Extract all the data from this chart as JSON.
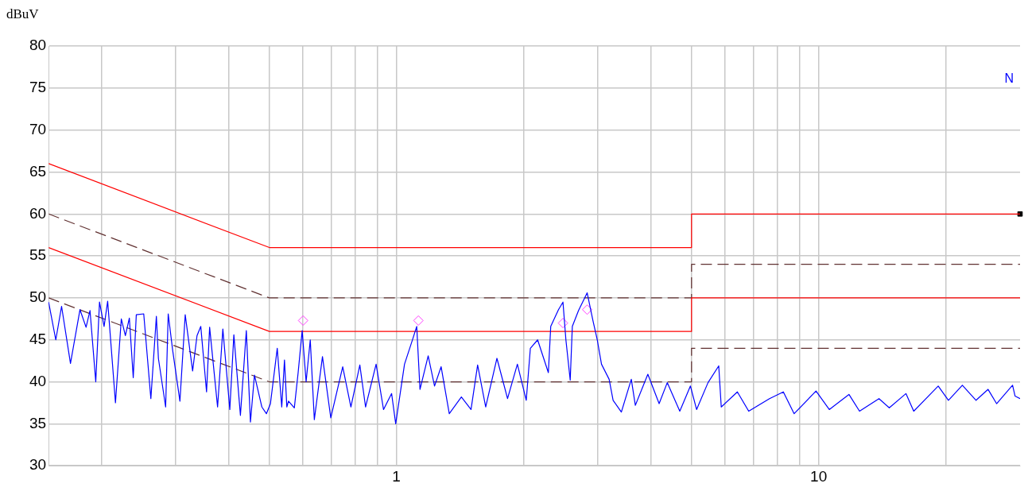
{
  "chart_data": {
    "type": "line",
    "ylabel": "dBuV",
    "annotations": [
      "N"
    ],
    "log": "x",
    "grid": true,
    "legend": false,
    "xlim": [
      0.15,
      30
    ],
    "xticks": [
      {
        "value": 0.2,
        "label": null
      },
      {
        "value": 0.3,
        "label": null
      },
      {
        "value": 0.4,
        "label": null
      },
      {
        "value": 0.5,
        "label": null
      },
      {
        "value": 0.6,
        "label": null
      },
      {
        "value": 0.7,
        "label": null
      },
      {
        "value": 0.8,
        "label": null
      },
      {
        "value": 0.9,
        "label": null
      },
      1,
      {
        "value": 2,
        "label": null
      },
      {
        "value": 3,
        "label": null
      },
      {
        "value": 4,
        "label": null
      },
      {
        "value": 5,
        "label": null
      },
      {
        "value": 6,
        "label": null
      },
      {
        "value": 7,
        "label": null
      },
      {
        "value": 8,
        "label": null
      },
      {
        "value": 9,
        "label": null
      },
      10,
      {
        "value": 20,
        "label": null
      }
    ],
    "ylim": [
      30,
      80
    ],
    "yticks": [
      30,
      35,
      40,
      45,
      50,
      55,
      60,
      65,
      70,
      75,
      80
    ],
    "series": [
      {
        "color": "#0000ff",
        "line_style": "solid",
        "marker": "none",
        "x": [
          0.15,
          0.156,
          0.161,
          0.169,
          0.178,
          0.184,
          0.188,
          0.194,
          0.198,
          0.203,
          0.207,
          0.216,
          0.223,
          0.228,
          0.233,
          0.238,
          0.242,
          0.252,
          0.262,
          0.27,
          0.273,
          0.284,
          0.288,
          0.295,
          0.307,
          0.316,
          0.329,
          0.337,
          0.344,
          0.355,
          0.361,
          0.377,
          0.388,
          0.403,
          0.412,
          0.427,
          0.441,
          0.451,
          0.461,
          0.48,
          0.492,
          0.503,
          0.522,
          0.535,
          0.543,
          0.55,
          0.555,
          0.573,
          0.585,
          0.598,
          0.611,
          0.625,
          0.639,
          0.668,
          0.699,
          0.746,
          0.78,
          0.819,
          0.845,
          0.895,
          0.932,
          0.974,
          0.996,
          1.045,
          1.093,
          1.117,
          1.137,
          1.189,
          1.231,
          1.276,
          1.334,
          1.425,
          1.502,
          1.557,
          1.627,
          1.73,
          1.833,
          1.934,
          2.03,
          2.076,
          2.16,
          2.29,
          2.32,
          2.42,
          2.48,
          2.52,
          2.58,
          2.61,
          2.7,
          2.83,
          2.92,
          2.99,
          3.06,
          3.19,
          3.26,
          3.41,
          3.6,
          3.68,
          3.94,
          4.19,
          4.38,
          4.69,
          4.97,
          5.14,
          5.47,
          5.8,
          5.88,
          6.42,
          6.83,
          7.65,
          8.25,
          8.75,
          9.86,
          10.6,
          11.8,
          12.5,
          13.9,
          14.7,
          16.1,
          16.8,
          19.2,
          20.3,
          21.9,
          23.6,
          25.2,
          26.4,
          28.8,
          29.2,
          30
        ],
        "values": [
          49.5,
          45,
          49,
          42.2,
          48.6,
          46.5,
          48.5,
          40,
          49.5,
          46.6,
          49.6,
          37.5,
          47.5,
          45.5,
          47.6,
          40.5,
          48,
          48.1,
          38,
          47.8,
          42.8,
          37,
          48.1,
          43.8,
          37.7,
          48,
          41.3,
          45.5,
          46.6,
          38.8,
          46.5,
          37,
          46.3,
          36.7,
          45.6,
          36,
          46.1,
          35.2,
          40.8,
          37,
          36.2,
          37.4,
          44,
          37,
          42.6,
          37,
          37.7,
          36.9,
          41.1,
          46.1,
          40,
          45,
          35.5,
          43,
          35.7,
          41.8,
          37,
          42,
          37,
          42.1,
          36.7,
          38.6,
          35,
          42.1,
          45.1,
          46.6,
          39.1,
          43.1,
          39.5,
          41.8,
          36.2,
          38.2,
          36.7,
          42,
          37,
          42.8,
          38,
          42.1,
          37.8,
          44,
          45,
          41.1,
          46.6,
          48.6,
          49.5,
          45,
          40.2,
          46.6,
          48.5,
          50.6,
          47.3,
          45,
          42.1,
          40.3,
          37.8,
          36.4,
          40.3,
          37.2,
          40.9,
          37.4,
          39.9,
          36.5,
          39.5,
          36.7,
          39.9,
          41.9,
          37,
          38.8,
          36.5,
          38,
          38.8,
          36.2,
          38.9,
          36.7,
          38.5,
          36.5,
          38,
          36.9,
          38.6,
          36.5,
          39.5,
          37.8,
          39.6,
          37.8,
          39.1,
          37.4,
          39.6,
          38.3,
          38
        ]
      },
      {
        "color": "#ff0000",
        "line_style": "solid",
        "marker": "none",
        "x": [
          0.15,
          0.5,
          5,
          5,
          30
        ],
        "values": [
          66,
          56,
          56,
          60,
          60
        ]
      },
      {
        "color": "#ff0000",
        "line_style": "solid",
        "marker": "none",
        "x": [
          0.15,
          0.5,
          5,
          5,
          30
        ],
        "values": [
          56,
          46,
          46,
          50,
          50
        ]
      },
      {
        "color": "#603030",
        "line_style": "dashed",
        "marker": "none",
        "x": [
          0.15,
          0.5,
          5,
          5,
          30
        ],
        "values": [
          60,
          50,
          50,
          54,
          54
        ]
      },
      {
        "color": "#603030",
        "line_style": "dashed",
        "marker": "none",
        "x": [
          0.15,
          0.5,
          5,
          5,
          30
        ],
        "values": [
          50,
          40,
          40,
          44,
          44
        ]
      },
      {
        "type": "scatter",
        "color": "#ff40ff",
        "marker": "diamond",
        "x": [
          0.601,
          1.127,
          2.48,
          2.83
        ],
        "values": [
          47.3,
          47.3,
          47,
          48.6
        ]
      },
      {
        "type": "scatter",
        "color": "#000000",
        "marker": "square",
        "x": [
          30
        ],
        "values": [
          60
        ]
      }
    ]
  }
}
